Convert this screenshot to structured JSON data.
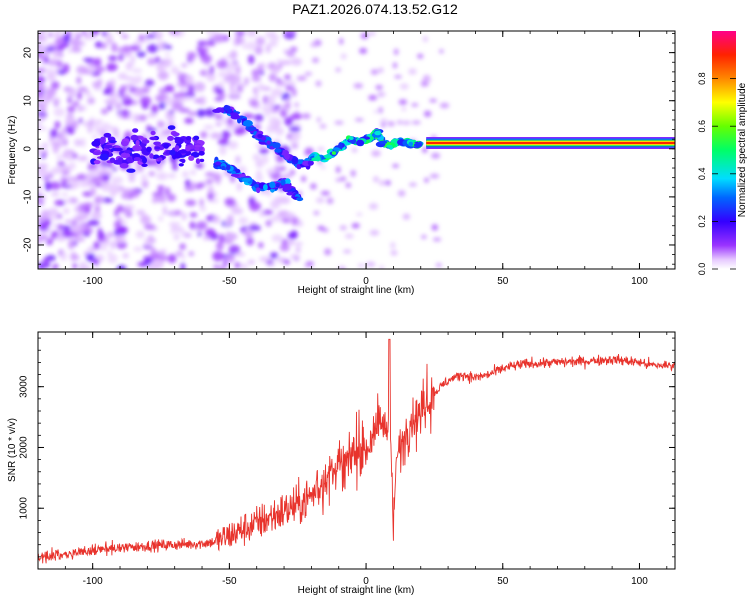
{
  "title": "PAZ1.2026.074.13.52.G12",
  "chart_data": [
    {
      "type": "heatmap",
      "xlabel": "Height of straight line (km)",
      "ylabel": "Frequency (Hz)",
      "xlim": [
        -120,
        113
      ],
      "ylim": [
        -25,
        24.5
      ],
      "xticks": [
        -100,
        -50,
        0,
        50,
        100
      ],
      "xtick_labels": [
        "-100",
        "-50",
        "0",
        "50",
        "100"
      ],
      "yticks": [
        -20,
        -10,
        0,
        10,
        20
      ],
      "ytick_labels": [
        "-20",
        "-10",
        "0",
        "10",
        "20"
      ],
      "colorbar": {
        "label": "Normalized spectral amplitude",
        "range": [
          0,
          1
        ],
        "ticks": [
          0.0,
          0.2,
          0.4,
          0.6,
          0.8
        ],
        "tick_labels": [
          "0.0",
          "0.2",
          "0.4",
          "0.6",
          "0.8"
        ],
        "colormap": "rainbow (white-violet-blue-cyan-green-yellow-orange-red-magenta)"
      },
      "features": {
        "constant_tone": {
          "x_range": [
            22,
            113
          ],
          "frequency": 1.2,
          "amplitude": 0.85
        },
        "main_trace": [
          [
            -20,
            -1.5
          ],
          [
            -15,
            -2
          ],
          [
            -10,
            0
          ],
          [
            -6,
            2
          ],
          [
            -2,
            1.5
          ],
          [
            1,
            2
          ],
          [
            4,
            3.5
          ],
          [
            6,
            1.5
          ],
          [
            9,
            0.5
          ],
          [
            12,
            1.8
          ],
          [
            15,
            1.2
          ],
          [
            18,
            0.8
          ],
          [
            20,
            1.1
          ]
        ],
        "upper_branch": [
          [
            -55,
            8
          ],
          [
            -50,
            8
          ],
          [
            -45,
            6
          ],
          [
            -40,
            3
          ],
          [
            -35,
            1
          ],
          [
            -30,
            -1
          ],
          [
            -25,
            -3
          ],
          [
            -20,
            -3
          ]
        ],
        "lower_branch": [
          [
            -55,
            -3
          ],
          [
            -50,
            -4
          ],
          [
            -45,
            -6
          ],
          [
            -40,
            -8
          ],
          [
            -35,
            -8
          ],
          [
            -30,
            -7
          ],
          [
            -25,
            -10
          ]
        ],
        "left_cluster": {
          "x_range": [
            -100,
            -60
          ],
          "frequency": 0
        }
      }
    },
    {
      "type": "line",
      "xlabel": "Height of straight line (km)",
      "ylabel": "SNR (10 * v/v)",
      "xlim": [
        -120,
        113
      ],
      "ylim": [
        0,
        3900
      ],
      "xticks": [
        -100,
        -50,
        0,
        50,
        100
      ],
      "xtick_labels": [
        "-100",
        "-50",
        "0",
        "50",
        "100"
      ],
      "yticks": [
        1000,
        2000,
        3000
      ],
      "ytick_labels": [
        "1000",
        "2000",
        "3000"
      ],
      "series": [
        {
          "name": "SNR",
          "color": "#e8332c",
          "x": [
            -120,
            -110,
            -100,
            -90,
            -80,
            -70,
            -60,
            -55,
            -50,
            -45,
            -40,
            -35,
            -30,
            -25,
            -20,
            -18,
            -15,
            -10,
            -5,
            0,
            3,
            5,
            7,
            9,
            10,
            11,
            13,
            15,
            20,
            25,
            30,
            35,
            40,
            45,
            50,
            55,
            60,
            70,
            80,
            90,
            100,
            105,
            113
          ],
          "y": [
            200,
            250,
            300,
            350,
            380,
            400,
            420,
            450,
            550,
            650,
            750,
            850,
            950,
            1050,
            1200,
            1300,
            1500,
            1700,
            1850,
            1950,
            2200,
            2400,
            2500,
            2200,
            500,
            1800,
            2100,
            2350,
            2600,
            2900,
            3100,
            3200,
            3150,
            3200,
            3300,
            3350,
            3380,
            3400,
            3420,
            3450,
            3400,
            3350,
            3350
          ]
        }
      ]
    }
  ]
}
